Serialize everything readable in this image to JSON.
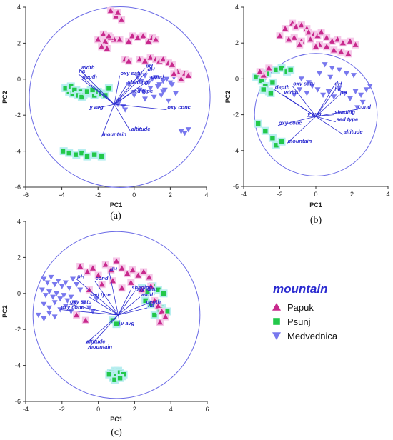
{
  "colors": {
    "Papuk": "#c8288c",
    "Psunj": "#22c84a",
    "Medvednica": "#7878ee",
    "vector": "#2a2ad0",
    "halo_papuk": "#f5c8e8",
    "halo_psunj": "#b8eef0"
  },
  "legend": {
    "title": "mountain",
    "entries": [
      "Papuk",
      "Psunj",
      "Medvednica"
    ]
  },
  "chart_data": [
    {
      "type": "scatter",
      "panel_label": "(a)",
      "xlabel": "PC1",
      "ylabel": "PC2",
      "xlim": [
        -6,
        4
      ],
      "ylim": [
        -6,
        4
      ],
      "xticks": [
        -6,
        -4,
        -2,
        0,
        2,
        4
      ],
      "yticks": [
        -6,
        -4,
        -2,
        0,
        2,
        4
      ],
      "circle": {
        "cx": -0.8,
        "cy": -1.0,
        "r": 5.0
      },
      "origin": [
        -1.1,
        -1.4
      ],
      "vectors": [
        {
          "label": "width",
          "x": -3.0,
          "y": 0.5
        },
        {
          "label": "ha",
          "x": -3.1,
          "y": 0.3
        },
        {
          "label": "depth",
          "x": -2.9,
          "y": 0.0
        },
        {
          "label": "oxy satu",
          "x": -0.8,
          "y": 0.2
        },
        {
          "label": "pH",
          "x": 0.6,
          "y": 0.6
        },
        {
          "label": "dH",
          "x": 0.7,
          "y": 0.4
        },
        {
          "label": "cond",
          "x": 0.9,
          "y": 0.0
        },
        {
          "label": "shading",
          "x": -0.4,
          "y": -0.3
        },
        {
          "label": "sed type",
          "x": -0.2,
          "y": -0.8
        },
        {
          "label": "oxy conc",
          "x": 1.8,
          "y": -1.7
        },
        {
          "label": "v avg",
          "x": -2.5,
          "y": -1.7
        },
        {
          "label": "altitude",
          "x": -0.2,
          "y": -2.9
        },
        {
          "label": "mountain",
          "x": -1.8,
          "y": -3.2
        }
      ],
      "series": [
        {
          "name": "Papuk",
          "x": [
            -1.3,
            -1.0,
            -0.9,
            -0.7,
            -1.1,
            -1.6,
            -1.8,
            -1.5,
            -1.3,
            -1.7,
            -2.0,
            -1.4,
            -0.8,
            -0.3,
            -0.1,
            0.2,
            0.5,
            0.8,
            1.0,
            1.2,
            -0.5,
            -0.3,
            0.3,
            0.6,
            0.9,
            1.2,
            1.4,
            1.6,
            1.9,
            2.1,
            2.4,
            2.8,
            3.0,
            2.6,
            2.2
          ],
          "y": [
            3.8,
            3.5,
            3.7,
            3.3,
            2.2,
            2.1,
            1.8,
            1.7,
            2.3,
            2.5,
            2.2,
            2.4,
            2.2,
            2.1,
            2.4,
            2.3,
            2.4,
            2.1,
            2.3,
            2.2,
            1.1,
            1.0,
            1.1,
            1.0,
            1.2,
            1.1,
            1.0,
            1.1,
            0.9,
            0.8,
            0.4,
            0.3,
            0.2,
            0.0,
            0.3
          ]
        },
        {
          "name": "Psunj",
          "x": [
            -3.6,
            -3.4,
            -3.2,
            -3.0,
            -2.8,
            -2.6,
            -2.4,
            -2.2,
            -2.0,
            -1.8,
            -1.6,
            -1.4,
            -3.8,
            -3.5,
            -3.3,
            -3.1,
            -2.9,
            -2.6,
            -2.3,
            -3.9,
            -3.6,
            -3.2,
            -2.9,
            -2.6,
            -2.2,
            -1.8
          ],
          "y": [
            -0.7,
            -0.8,
            -0.6,
            -0.7,
            -0.9,
            -0.8,
            -0.6,
            -0.9,
            -0.7,
            -0.8,
            -0.9,
            -0.5,
            -0.5,
            -0.4,
            -0.6,
            -0.9,
            -1.0,
            -0.7,
            -0.6,
            -4.0,
            -4.1,
            -4.2,
            -4.1,
            -4.3,
            -4.2,
            -4.3
          ]
        },
        {
          "name": "Medvednica",
          "x": [
            0.2,
            0.4,
            0.6,
            0.8,
            1.0,
            1.2,
            1.4,
            1.6,
            1.8,
            2.0,
            2.2,
            0.3,
            0.5,
            0.9,
            1.3,
            1.7,
            2.1,
            0.0,
            0.6,
            1.1,
            1.5,
            1.9,
            2.3,
            -0.8,
            -0.6,
            -0.5,
            -0.9,
            2.6,
            3.0,
            2.8,
            1.6,
            -0.3
          ],
          "y": [
            0.1,
            -0.1,
            0.2,
            -0.2,
            0.0,
            0.1,
            -0.3,
            -0.1,
            0.0,
            -0.2,
            0.1,
            -0.6,
            -0.7,
            -0.5,
            -0.4,
            -0.6,
            -0.3,
            -0.9,
            -1.1,
            -1.0,
            -0.9,
            -1.2,
            -0.8,
            -1.2,
            -1.5,
            -1.7,
            -1.4,
            -2.9,
            -2.8,
            -3.0,
            -0.7,
            -0.3
          ]
        }
      ]
    },
    {
      "type": "scatter",
      "panel_label": "(b)",
      "xlabel": "PC1",
      "ylabel": "PC2",
      "xlim": [
        -4,
        4
      ],
      "ylim": [
        -6,
        4
      ],
      "xticks": [
        -4,
        -2,
        0,
        2,
        4
      ],
      "yticks": [
        -6,
        -4,
        -2,
        0,
        2,
        4
      ],
      "circle": {
        "cx": 0.0,
        "cy": -2.0,
        "r": 3.4
      },
      "origin": [
        0.0,
        -2.1
      ],
      "vectors": [
        {
          "label": "depth",
          "x": -2.3,
          "y": -0.6
        },
        {
          "label": "oxy satu",
          "x": -1.3,
          "y": -0.4
        },
        {
          "label": "width",
          "x": -1.8,
          "y": -0.9
        },
        {
          "label": "dH",
          "x": 1.0,
          "y": -0.4
        },
        {
          "label": "ha",
          "x": 1.0,
          "y": -0.7
        },
        {
          "label": "pH",
          "x": 1.3,
          "y": -0.9
        },
        {
          "label": "v avg",
          "x": -0.5,
          "y": -2.1
        },
        {
          "label": "oxy conc",
          "x": -2.1,
          "y": -2.6
        },
        {
          "label": "shading",
          "x": 1.0,
          "y": -2.0
        },
        {
          "label": "sed type",
          "x": 1.1,
          "y": -2.4
        },
        {
          "label": "cond",
          "x": 2.3,
          "y": -1.7
        },
        {
          "label": "mountain",
          "x": -1.6,
          "y": -3.6
        },
        {
          "label": "altitude",
          "x": 1.5,
          "y": -3.1
        }
      ],
      "series": [
        {
          "name": "Papuk",
          "x": [
            -1.7,
            -1.3,
            -1.1,
            -0.8,
            -0.5,
            -0.4,
            -0.1,
            0.1,
            0.3,
            0.6,
            0.9,
            1.2,
            1.5,
            1.9,
            2.2,
            -1.2,
            -0.8,
            -0.3,
            0.2,
            0.6,
            1.0,
            1.4,
            1.8,
            -2.0,
            -1.5,
            -0.9,
            0.0,
            -2.6,
            -2.9,
            -3.1
          ],
          "y": [
            2.8,
            3.1,
            2.9,
            3.0,
            2.8,
            2.6,
            2.5,
            2.4,
            2.6,
            2.3,
            2.1,
            2.2,
            2.0,
            2.1,
            1.9,
            2.3,
            2.1,
            2.2,
            1.9,
            1.8,
            1.6,
            1.5,
            1.4,
            2.4,
            2.2,
            1.9,
            1.8,
            0.6,
            0.2,
            0.4
          ]
        },
        {
          "name": "Psunj",
          "x": [
            -3.3,
            -3.0,
            -2.8,
            -2.6,
            -2.9,
            -2.5,
            -2.2,
            -1.9,
            -1.6,
            -1.4,
            -2.7,
            -2.4,
            -3.2,
            -2.8,
            -2.4,
            -2.2,
            -1.9
          ],
          "y": [
            0.1,
            -0.1,
            -0.4,
            -0.7,
            -0.6,
            -0.8,
            0.5,
            0.6,
            0.4,
            0.5,
            0.3,
            -0.2,
            -2.5,
            -2.9,
            -3.3,
            -3.7,
            -3.5
          ]
        },
        {
          "name": "Medvednica",
          "x": [
            -1.2,
            -0.9,
            -0.5,
            -0.2,
            0.1,
            0.4,
            0.7,
            1.0,
            1.3,
            1.6,
            1.9,
            2.2,
            2.5,
            2.8,
            3.0,
            2.6,
            2.3,
            0.5,
            0.9,
            1.3,
            1.7,
            2.1,
            -0.8,
            -0.4,
            0.2,
            0.8
          ],
          "y": [
            -0.9,
            -0.6,
            -0.8,
            -0.4,
            -0.6,
            -0.9,
            -0.7,
            -1.0,
            -0.5,
            -0.8,
            -1.1,
            -0.7,
            -0.9,
            -0.6,
            -0.4,
            -1.3,
            -1.6,
            0.8,
            0.6,
            0.5,
            0.3,
            0.2,
            0.0,
            -0.2,
            0.3,
            0.1
          ]
        }
      ]
    },
    {
      "type": "scatter",
      "panel_label": "(c)",
      "xlabel": "PC1",
      "ylabel": "PC2",
      "xlim": [
        -4,
        6
      ],
      "ylim": [
        -6,
        4
      ],
      "xticks": [
        -4,
        -2,
        0,
        2,
        4,
        6
      ],
      "yticks": [
        -6,
        -4,
        -2,
        0,
        2,
        4
      ],
      "circle": {
        "cx": 1.0,
        "cy": -1.2,
        "r": 4.6
      },
      "origin": [
        1.1,
        -1.2
      ],
      "vectors": [
        {
          "label": "pH",
          "x": -1.2,
          "y": 0.8
        },
        {
          "label": "dH",
          "x": 0.6,
          "y": 1.2
        },
        {
          "label": "cond",
          "x": -0.2,
          "y": 0.7
        },
        {
          "label": "shading",
          "x": 1.8,
          "y": 0.2
        },
        {
          "label": "oxy satu",
          "x": 2.0,
          "y": 0.1
        },
        {
          "label": "width",
          "x": 2.3,
          "y": -0.2
        },
        {
          "label": "depth",
          "x": 2.6,
          "y": -0.6
        },
        {
          "label": "ha",
          "x": 2.7,
          "y": -0.8
        },
        {
          "label": "sed type",
          "x": -0.5,
          "y": -0.2
        },
        {
          "label": "oxy satu",
          "x": -1.6,
          "y": -0.6
        },
        {
          "label": "oxy conc",
          "x": -2.1,
          "y": -0.9
        },
        {
          "label": "v avg",
          "x": 1.2,
          "y": -1.8
        },
        {
          "label": "altitude",
          "x": -0.7,
          "y": -2.8
        },
        {
          "label": "mountain",
          "x": -0.6,
          "y": -3.1
        }
      ],
      "series": [
        {
          "name": "Papuk",
          "x": [
            -1.0,
            -0.6,
            -0.3,
            0.0,
            0.4,
            0.7,
            1.0,
            1.3,
            1.6,
            1.9,
            2.2,
            2.5,
            2.8,
            -0.5,
            0.2,
            0.8,
            1.3,
            1.8,
            2.4,
            2.9,
            3.1,
            3.3,
            3.5,
            3.7,
            3.4,
            -1.2,
            -0.7
          ],
          "y": [
            1.5,
            1.2,
            1.4,
            1.0,
            1.6,
            1.3,
            1.8,
            1.4,
            1.1,
            1.3,
            1.0,
            1.2,
            0.9,
            0.2,
            0.5,
            0.7,
            0.3,
            0.6,
            0.2,
            0.4,
            -0.4,
            -0.7,
            -1.0,
            -1.3,
            -1.6,
            -1.2,
            -1.5
          ]
        },
        {
          "name": "Psunj",
          "x": [
            2.4,
            2.7,
            3.0,
            3.3,
            3.6,
            2.6,
            2.9,
            3.2,
            3.5,
            3.8,
            3.1,
            3.4,
            0.8,
            1.0,
            0.9,
            0.7,
            0.9,
            1.1,
            1.3,
            0.8,
            1.0,
            1.2,
            1.4,
            0.6,
            0.9,
            1.2
          ],
          "y": [
            0.3,
            0.1,
            0.4,
            0.2,
            0.0,
            -0.4,
            -0.6,
            -0.5,
            -0.8,
            -1.0,
            -1.2,
            -0.9,
            -1.5,
            -1.7,
            -4.3,
            -4.4,
            -4.5,
            -4.3,
            -4.6,
            -4.7,
            -4.6,
            -4.4,
            -4.5,
            -4.5,
            -4.8,
            -4.7
          ]
        },
        {
          "name": "Medvednica",
          "x": [
            -3.0,
            -2.8,
            -2.6,
            -2.4,
            -2.2,
            -2.0,
            -1.8,
            -1.6,
            -1.4,
            -1.2,
            -1.0,
            -3.1,
            -2.9,
            -2.7,
            -2.5,
            -2.3,
            -2.1,
            -1.9,
            -1.7,
            -1.5,
            -1.3,
            -3.0,
            -2.7,
            -2.4,
            -2.1,
            -1.8,
            -1.5,
            -3.3,
            -3.0,
            -2.7,
            -2.4,
            -0.8,
            -0.5,
            -0.3,
            -0.1
          ],
          "y": [
            0.8,
            0.6,
            0.9,
            0.5,
            0.7,
            0.4,
            0.6,
            0.3,
            0.8,
            0.5,
            0.2,
            0.2,
            -0.1,
            0.1,
            -0.2,
            0.0,
            -0.3,
            -0.1,
            -0.4,
            -0.2,
            -0.5,
            -0.6,
            -0.8,
            -0.5,
            -0.9,
            -0.7,
            -1.0,
            -1.2,
            -1.4,
            -1.1,
            -1.3,
            -0.5,
            -0.8,
            -1.0,
            -0.3
          ]
        }
      ]
    }
  ]
}
